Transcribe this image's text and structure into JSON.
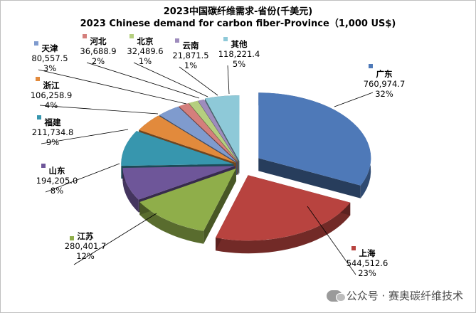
{
  "chart_data": {
    "type": "pie",
    "title": "2023中国碳纤维需求-省份(千美元)",
    "subtitle": "2023 Chinese demand for carbon fiber-Province（1,000 US$)",
    "slices": [
      {
        "name": "广东",
        "value": "760,974.7",
        "percent": "32%",
        "color": "#4e79b8"
      },
      {
        "name": "上海",
        "value": "544,512.6",
        "percent": "23%",
        "color": "#b8433f"
      },
      {
        "name": "江苏",
        "value": "280,401.7",
        "percent": "12%",
        "color": "#8fae4a"
      },
      {
        "name": "山东",
        "value": "194,205.0",
        "percent": "8%",
        "color": "#6e5699"
      },
      {
        "name": "福建",
        "value": "211,734.8",
        "percent": "9%",
        "color": "#3796ae"
      },
      {
        "name": "浙江",
        "value": "106,258.9",
        "percent": "4%",
        "color": "#e28a3c"
      },
      {
        "name": "天津",
        "value": "80,557.5",
        "percent": "3%",
        "color": "#7f9bce"
      },
      {
        "name": "河北",
        "value": "36,688.9",
        "percent": "2%",
        "color": "#d47f7c"
      },
      {
        "name": "北京",
        "value": "32,489.6",
        "percent": "1%",
        "color": "#b5cf7f"
      },
      {
        "name": "云南",
        "value": "21,871.5",
        "percent": "1%",
        "color": "#9e8cbd"
      },
      {
        "name": "其他",
        "value": "118,221.4",
        "percent": "5%",
        "color": "#8ec9d8"
      }
    ]
  },
  "watermark": {
    "text": "公众号 · 赛奥碳纤维技术"
  }
}
